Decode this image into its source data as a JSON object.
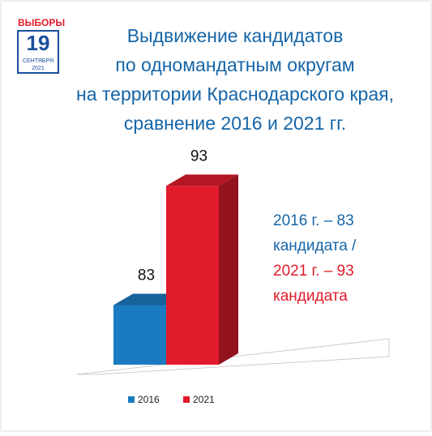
{
  "logo": {
    "name": "ВЫБОРЫ",
    "day": "19",
    "month": "СЕНТЯБРЯ",
    "year": "2021"
  },
  "chart_data": {
    "type": "bar3d",
    "title": [
      "Выдвижение кандидатов",
      "по одномандатным округам",
      "на территории Краснодарского края,",
      "сравнение 2016 и 2021 гг."
    ],
    "categories": [
      null
    ],
    "series": [
      {
        "name": "2016",
        "color": "#1b7bc0",
        "values": [
          83
        ]
      },
      {
        "name": "2021",
        "color": "#e11b2c",
        "values": [
          93
        ]
      }
    ],
    "ylim": [
      78,
      95
    ],
    "annotations": [
      {
        "text": "2016 г. – 83",
        "color": "#1565a8"
      },
      {
        "text": "кандидата /",
        "color": "#1565a8"
      },
      {
        "text": "2021 г. – 93",
        "color": "#e11b2c"
      },
      {
        "text": "кандидата",
        "color": "#e11b2c"
      }
    ]
  }
}
